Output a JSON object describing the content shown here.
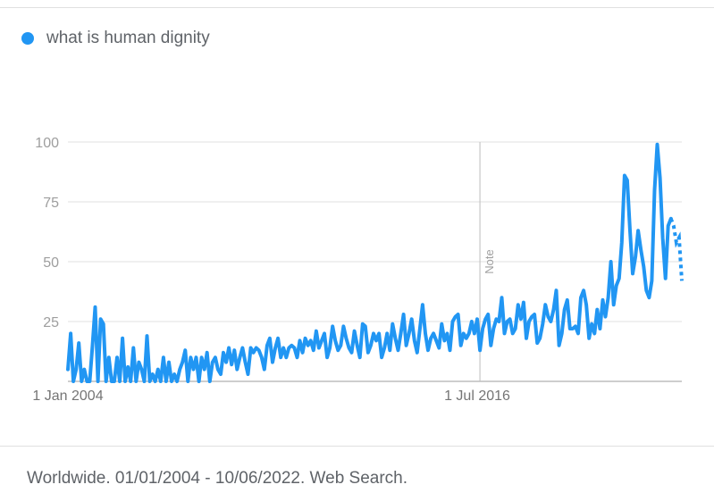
{
  "legend": {
    "label": "what is human dignity"
  },
  "footer": {
    "text": "Worldwide. 01/01/2004 - 10/06/2022. Web Search."
  },
  "chart_data": {
    "type": "line",
    "title": "",
    "xlabel": "",
    "ylabel": "",
    "ylim": [
      0,
      100
    ],
    "y_ticks": [
      25,
      50,
      75,
      100
    ],
    "x_tick_labels": [
      "1 Jan 2004",
      "1 Jul 2016"
    ],
    "x_tick_positions": [
      0,
      150
    ],
    "annotation": {
      "label": "Note",
      "x_index": 151
    },
    "grid": true,
    "legend_position": "top-left",
    "color": "#2196f3",
    "partial_from_index": 221,
    "series": [
      {
        "name": "what is human dignity",
        "values": [
          5,
          20,
          0,
          5,
          16,
          0,
          5,
          0,
          0,
          15,
          31,
          0,
          26,
          24,
          0,
          10,
          0,
          0,
          10,
          0,
          18,
          0,
          6,
          0,
          14,
          0,
          8,
          5,
          0,
          19,
          0,
          3,
          0,
          5,
          0,
          10,
          0,
          8,
          0,
          3,
          0,
          5,
          8,
          13,
          0,
          10,
          5,
          10,
          0,
          10,
          5,
          12,
          0,
          8,
          10,
          5,
          3,
          12,
          8,
          14,
          7,
          13,
          5,
          10,
          14,
          8,
          3,
          14,
          12,
          14,
          13,
          10,
          5,
          15,
          18,
          8,
          14,
          18,
          10,
          14,
          10,
          14,
          15,
          14,
          10,
          17,
          12,
          18,
          15,
          17,
          13,
          21,
          14,
          17,
          20,
          10,
          14,
          23,
          17,
          13,
          15,
          23,
          18,
          14,
          12,
          21,
          15,
          10,
          24,
          23,
          12,
          15,
          20,
          17,
          20,
          10,
          14,
          20,
          13,
          24,
          18,
          13,
          20,
          28,
          15,
          20,
          26,
          17,
          12,
          22,
          32,
          20,
          13,
          18,
          20,
          17,
          14,
          24,
          17,
          20,
          13,
          25,
          27,
          28,
          15,
          20,
          18,
          20,
          25,
          20,
          26,
          13,
          22,
          26,
          28,
          15,
          22,
          26,
          25,
          35,
          20,
          25,
          26,
          20,
          22,
          32,
          26,
          33,
          18,
          25,
          27,
          28,
          16,
          18,
          24,
          32,
          27,
          25,
          30,
          38,
          15,
          20,
          30,
          34,
          22,
          22,
          23,
          20,
          35,
          38,
          32,
          18,
          24,
          20,
          30,
          22,
          34,
          27,
          35,
          50,
          32,
          40,
          43,
          58,
          86,
          84,
          63,
          45,
          52,
          63,
          55,
          48,
          38,
          35,
          42,
          80,
          99,
          85,
          60,
          43,
          65,
          68,
          65,
          58,
          60,
          42
        ]
      }
    ]
  }
}
